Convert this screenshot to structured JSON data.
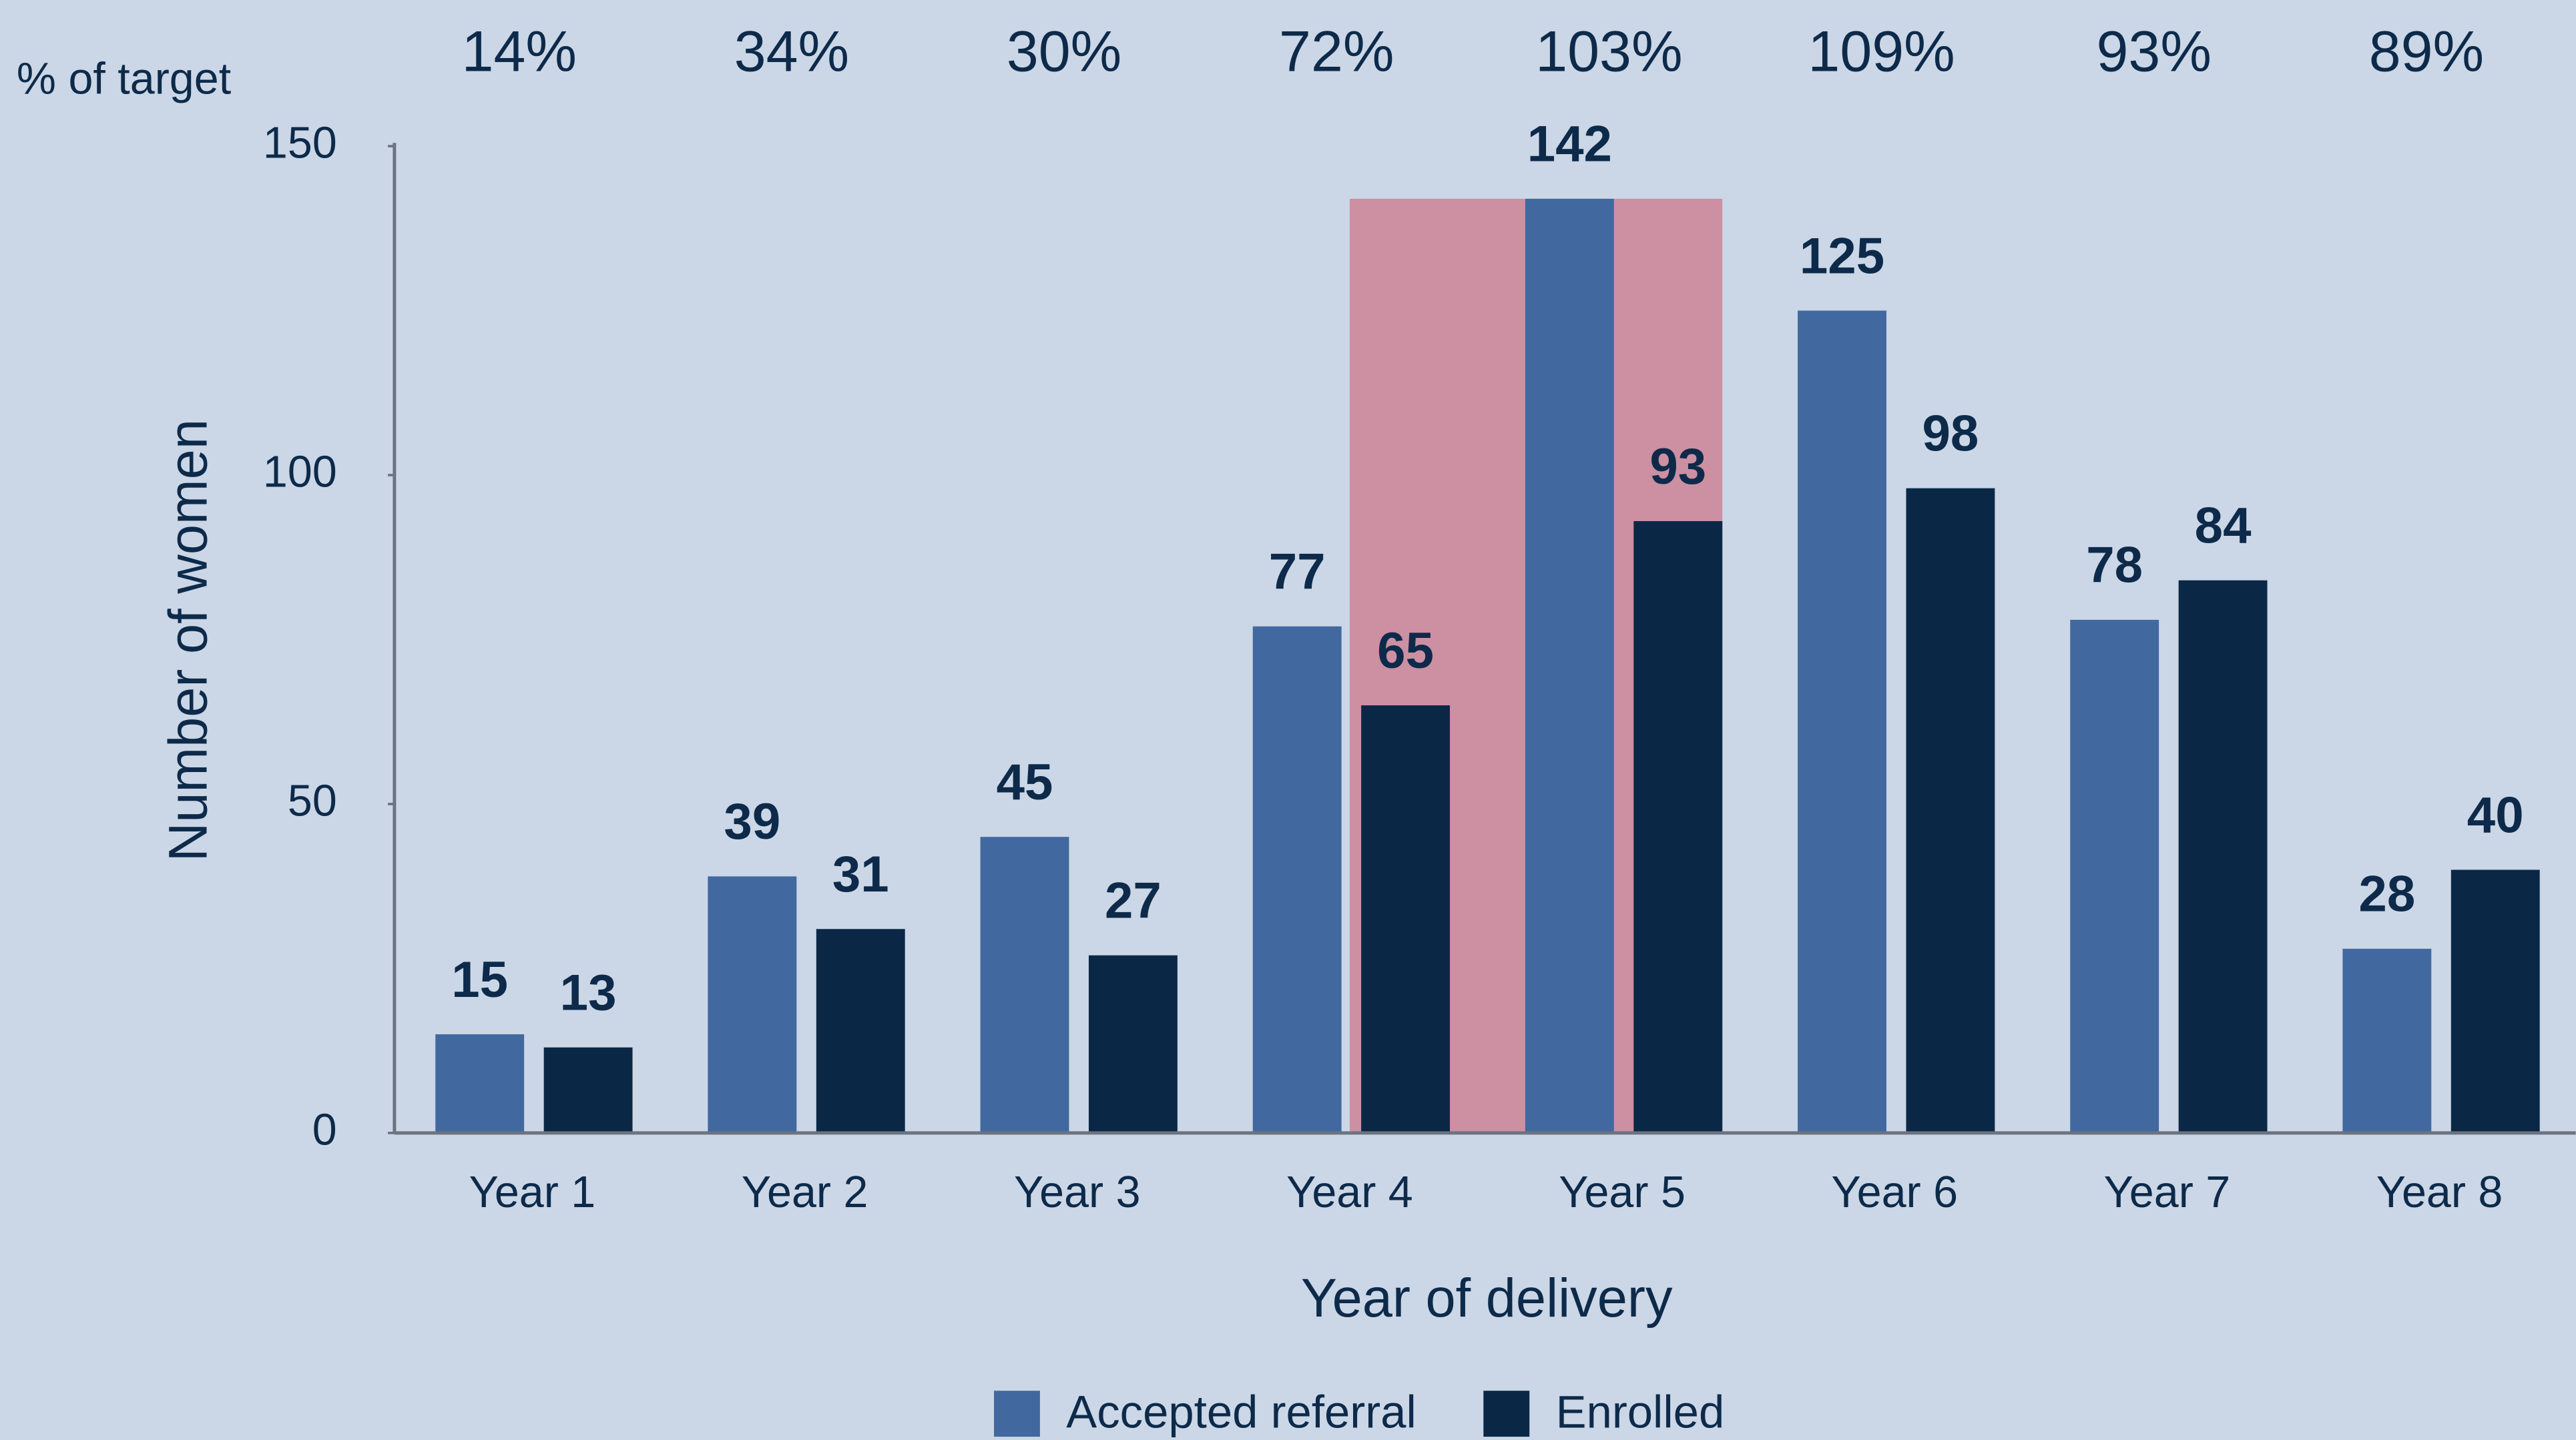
{
  "chart_data": {
    "type": "bar",
    "categories": [
      "Year 1",
      "Year 2",
      "Year 3",
      "Year 4",
      "Year 5",
      "Year 6",
      "Year 7",
      "Year 8"
    ],
    "series": [
      {
        "name": "Accepted referral",
        "color": "#4268a0",
        "values": [
          15,
          39,
          45,
          77,
          142,
          125,
          78,
          28
        ]
      },
      {
        "name": "Enrolled",
        "color": "#0a2846",
        "values": [
          13,
          31,
          27,
          65,
          93,
          98,
          84,
          40
        ]
      }
    ],
    "x_label": "Year of delivery",
    "y_label": "Number of women",
    "ylim": [
      0,
      150
    ],
    "yticks": [
      0,
      50,
      100,
      150
    ],
    "target_percent": {
      "label": "% of target",
      "values": [
        14,
        34,
        30,
        72,
        103,
        109,
        93,
        89
      ],
      "value_labels": [
        "14%",
        "34%",
        "30%",
        "72%",
        "103%",
        "109%",
        "93%",
        "89%"
      ]
    },
    "highlight": {
      "category": "Year 5",
      "color": "#cd8fa2"
    },
    "legend": "bottom"
  }
}
